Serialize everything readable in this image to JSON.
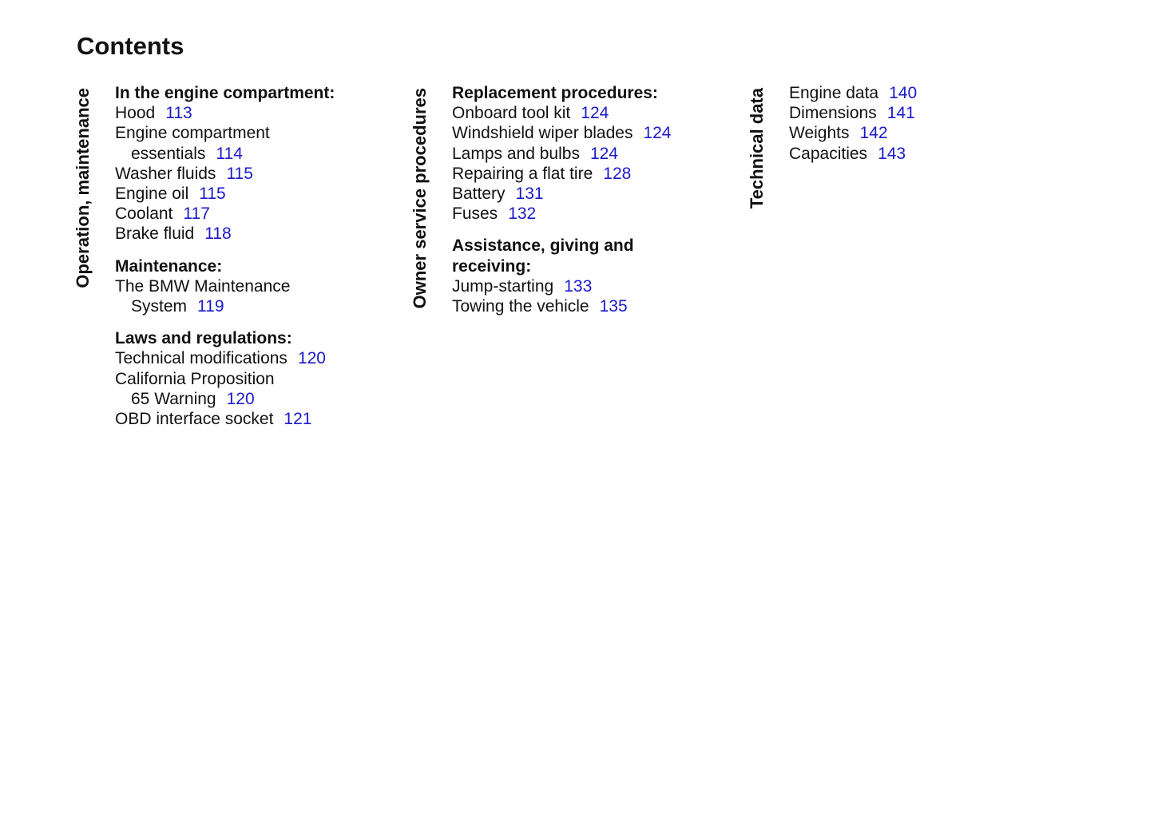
{
  "title": "Contents",
  "link_color": "#1a1acc",
  "sections": [
    {
      "label": "Operation, maintenance",
      "groups": [
        {
          "heading": [
            "In the engine compartment:"
          ],
          "items": [
            {
              "lines": [
                "Hood"
              ],
              "page": "113"
            },
            {
              "lines": [
                "Engine compartment",
                "essentials"
              ],
              "page": "114"
            },
            {
              "lines": [
                "Washer fluids"
              ],
              "page": "115"
            },
            {
              "lines": [
                "Engine oil"
              ],
              "page": "115"
            },
            {
              "lines": [
                "Coolant"
              ],
              "page": "117"
            },
            {
              "lines": [
                "Brake fluid"
              ],
              "page": "118"
            }
          ]
        },
        {
          "heading": [
            "Maintenance:"
          ],
          "items": [
            {
              "lines": [
                "The BMW Maintenance",
                "System"
              ],
              "page": "119"
            }
          ]
        },
        {
          "heading": [
            "Laws and regulations:"
          ],
          "items": [
            {
              "lines": [
                "Technical modifications"
              ],
              "page": "120"
            },
            {
              "lines": [
                "California Proposition",
                "65 Warning"
              ],
              "page": "120"
            },
            {
              "lines": [
                "OBD interface socket"
              ],
              "page": "121"
            }
          ]
        }
      ]
    },
    {
      "label": "Owner service procedures",
      "groups": [
        {
          "heading": [
            "Replacement procedures:"
          ],
          "items": [
            {
              "lines": [
                "Onboard tool kit"
              ],
              "page": "124"
            },
            {
              "lines": [
                "Windshield wiper blades"
              ],
              "page": "124"
            },
            {
              "lines": [
                "Lamps and bulbs"
              ],
              "page": "124"
            },
            {
              "lines": [
                "Repairing a flat tire"
              ],
              "page": "128"
            },
            {
              "lines": [
                "Battery"
              ],
              "page": "131"
            },
            {
              "lines": [
                "Fuses"
              ],
              "page": "132"
            }
          ]
        },
        {
          "heading": [
            "Assistance, giving and",
            "receiving:"
          ],
          "items": [
            {
              "lines": [
                "Jump-starting"
              ],
              "page": "133"
            },
            {
              "lines": [
                "Towing the vehicle"
              ],
              "page": "135"
            }
          ]
        }
      ]
    },
    {
      "label": "Technical data",
      "groups": [
        {
          "heading": [],
          "items": [
            {
              "lines": [
                "Engine data"
              ],
              "page": "140"
            },
            {
              "lines": [
                "Dimensions"
              ],
              "page": "141"
            },
            {
              "lines": [
                "Weights"
              ],
              "page": "142"
            },
            {
              "lines": [
                "Capacities"
              ],
              "page": "143"
            }
          ]
        }
      ]
    }
  ]
}
